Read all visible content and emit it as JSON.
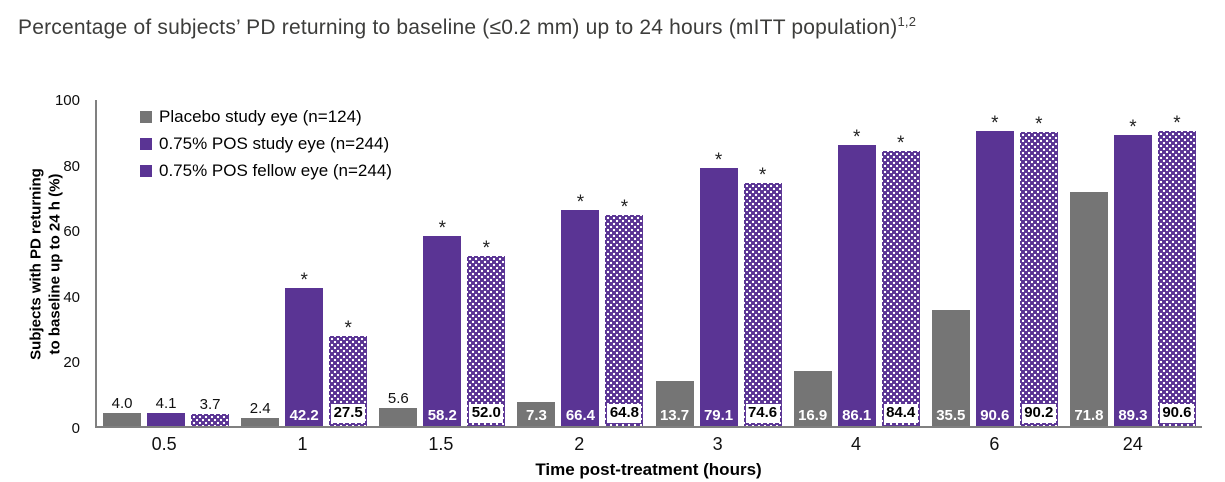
{
  "title": {
    "text": "Percentage of subjects’ PD returning to baseline (≤0.2 mm) up to 24 hours (mITT population)",
    "superscript": "1,2"
  },
  "colors": {
    "placebo": "#757575",
    "pos_purple": "#5a3494",
    "axis": "#808080",
    "title_text": "#3d3d3b",
    "significance_marker_color": "#222222"
  },
  "chart_data": {
    "type": "bar",
    "title": "Percentage of subjects’ PD returning to baseline (≤0.2 mm) up to 24 hours (mITT population)",
    "title_superscript": "1,2",
    "categories": [
      "0.5",
      "1",
      "1.5",
      "2",
      "3",
      "4",
      "6",
      "24"
    ],
    "xlabel": "Time post-treatment (hours)",
    "ylabel_lines": [
      "Subjects with PD returning",
      "to baseline up to 24 h (%)"
    ],
    "ylim": [
      0,
      100
    ],
    "yticks": [
      0,
      20,
      40,
      60,
      80,
      100
    ],
    "grid": false,
    "legend_position": "inside-top-left",
    "significance_marker": "*",
    "series": [
      {
        "name": "Placebo study eye (n=124)",
        "key": "placebo",
        "color": "#757575",
        "pattern": "solid",
        "values": [
          4.0,
          2.4,
          5.6,
          7.3,
          13.7,
          16.9,
          35.5,
          71.8
        ],
        "significant": [
          false,
          false,
          false,
          false,
          false,
          false,
          false,
          false
        ]
      },
      {
        "name": "0.75% POS study eye (n=244)",
        "key": "pos-study",
        "color": "#5a3494",
        "pattern": "solid",
        "values": [
          4.1,
          42.2,
          58.2,
          66.4,
          79.1,
          86.1,
          90.6,
          89.3
        ],
        "significant": [
          false,
          true,
          true,
          true,
          true,
          true,
          true,
          true
        ]
      },
      {
        "name": "0.75% POS fellow eye (n=244)",
        "key": "pos-fellow",
        "color": "#5a3494",
        "pattern": "dotted",
        "values": [
          3.7,
          27.5,
          52.0,
          64.8,
          74.6,
          84.4,
          90.2,
          90.6
        ],
        "significant": [
          false,
          true,
          true,
          true,
          true,
          true,
          true,
          true
        ]
      }
    ]
  }
}
